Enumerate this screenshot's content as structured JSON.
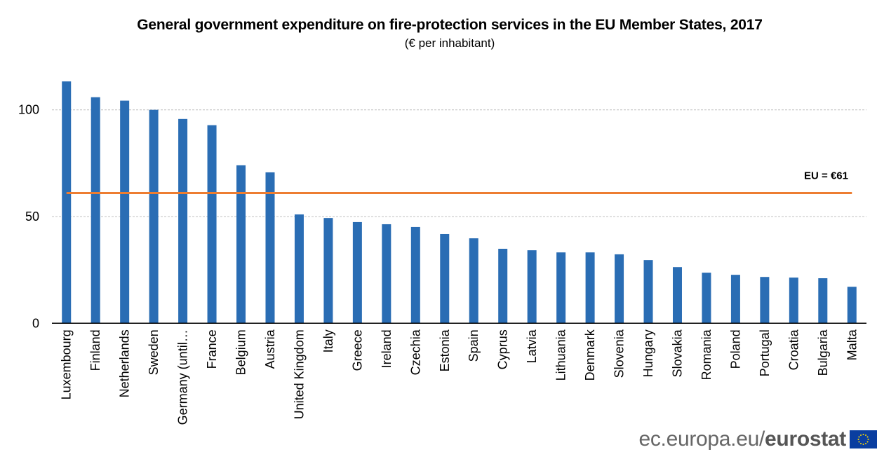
{
  "chart_data": {
    "type": "bar",
    "title": "General government expenditure on fire-protection services in the EU Member States, 2017",
    "subtitle": "(€ per inhabitant)",
    "xlabel": "",
    "ylabel": "",
    "ylim": [
      0,
      120
    ],
    "yticks": [
      0,
      50,
      100
    ],
    "grid": true,
    "legend": null,
    "categories": [
      "Luxembourg",
      "Finland",
      "Netherlands",
      "Sweden",
      "Germany (until…",
      "France",
      "Belgium",
      "Austria",
      "United Kingdom",
      "Italy",
      "Greece",
      "Ireland",
      "Czechia",
      "Estonia",
      "Spain",
      "Cyprus",
      "Latvia",
      "Lithuania",
      "Denmark",
      "Slovenia",
      "Hungary",
      "Slovakia",
      "Romania",
      "Poland",
      "Portugal",
      "Croatia",
      "Bulgaria",
      "Malta"
    ],
    "values": [
      113.3,
      105.9,
      104.3,
      100.0,
      95.7,
      92.8,
      74.0,
      70.7,
      51.0,
      49.3,
      47.4,
      46.4,
      45.1,
      41.8,
      39.8,
      34.9,
      34.2,
      33.2,
      33.2,
      32.3,
      29.6,
      26.3,
      23.7,
      22.7,
      21.7,
      21.4,
      21.1,
      17.1
    ],
    "reference_line": {
      "label": "EU = €61",
      "value": 61
    },
    "colors": {
      "bars": "#2a6db4",
      "reference_line": "#ed7d31",
      "grid": "#c0c0c0",
      "axis": "#000000"
    }
  },
  "footer": {
    "logo_domain": "ec.europa.eu/",
    "logo_brand": "eurostat",
    "flag_icon": "eu-flag-icon"
  }
}
